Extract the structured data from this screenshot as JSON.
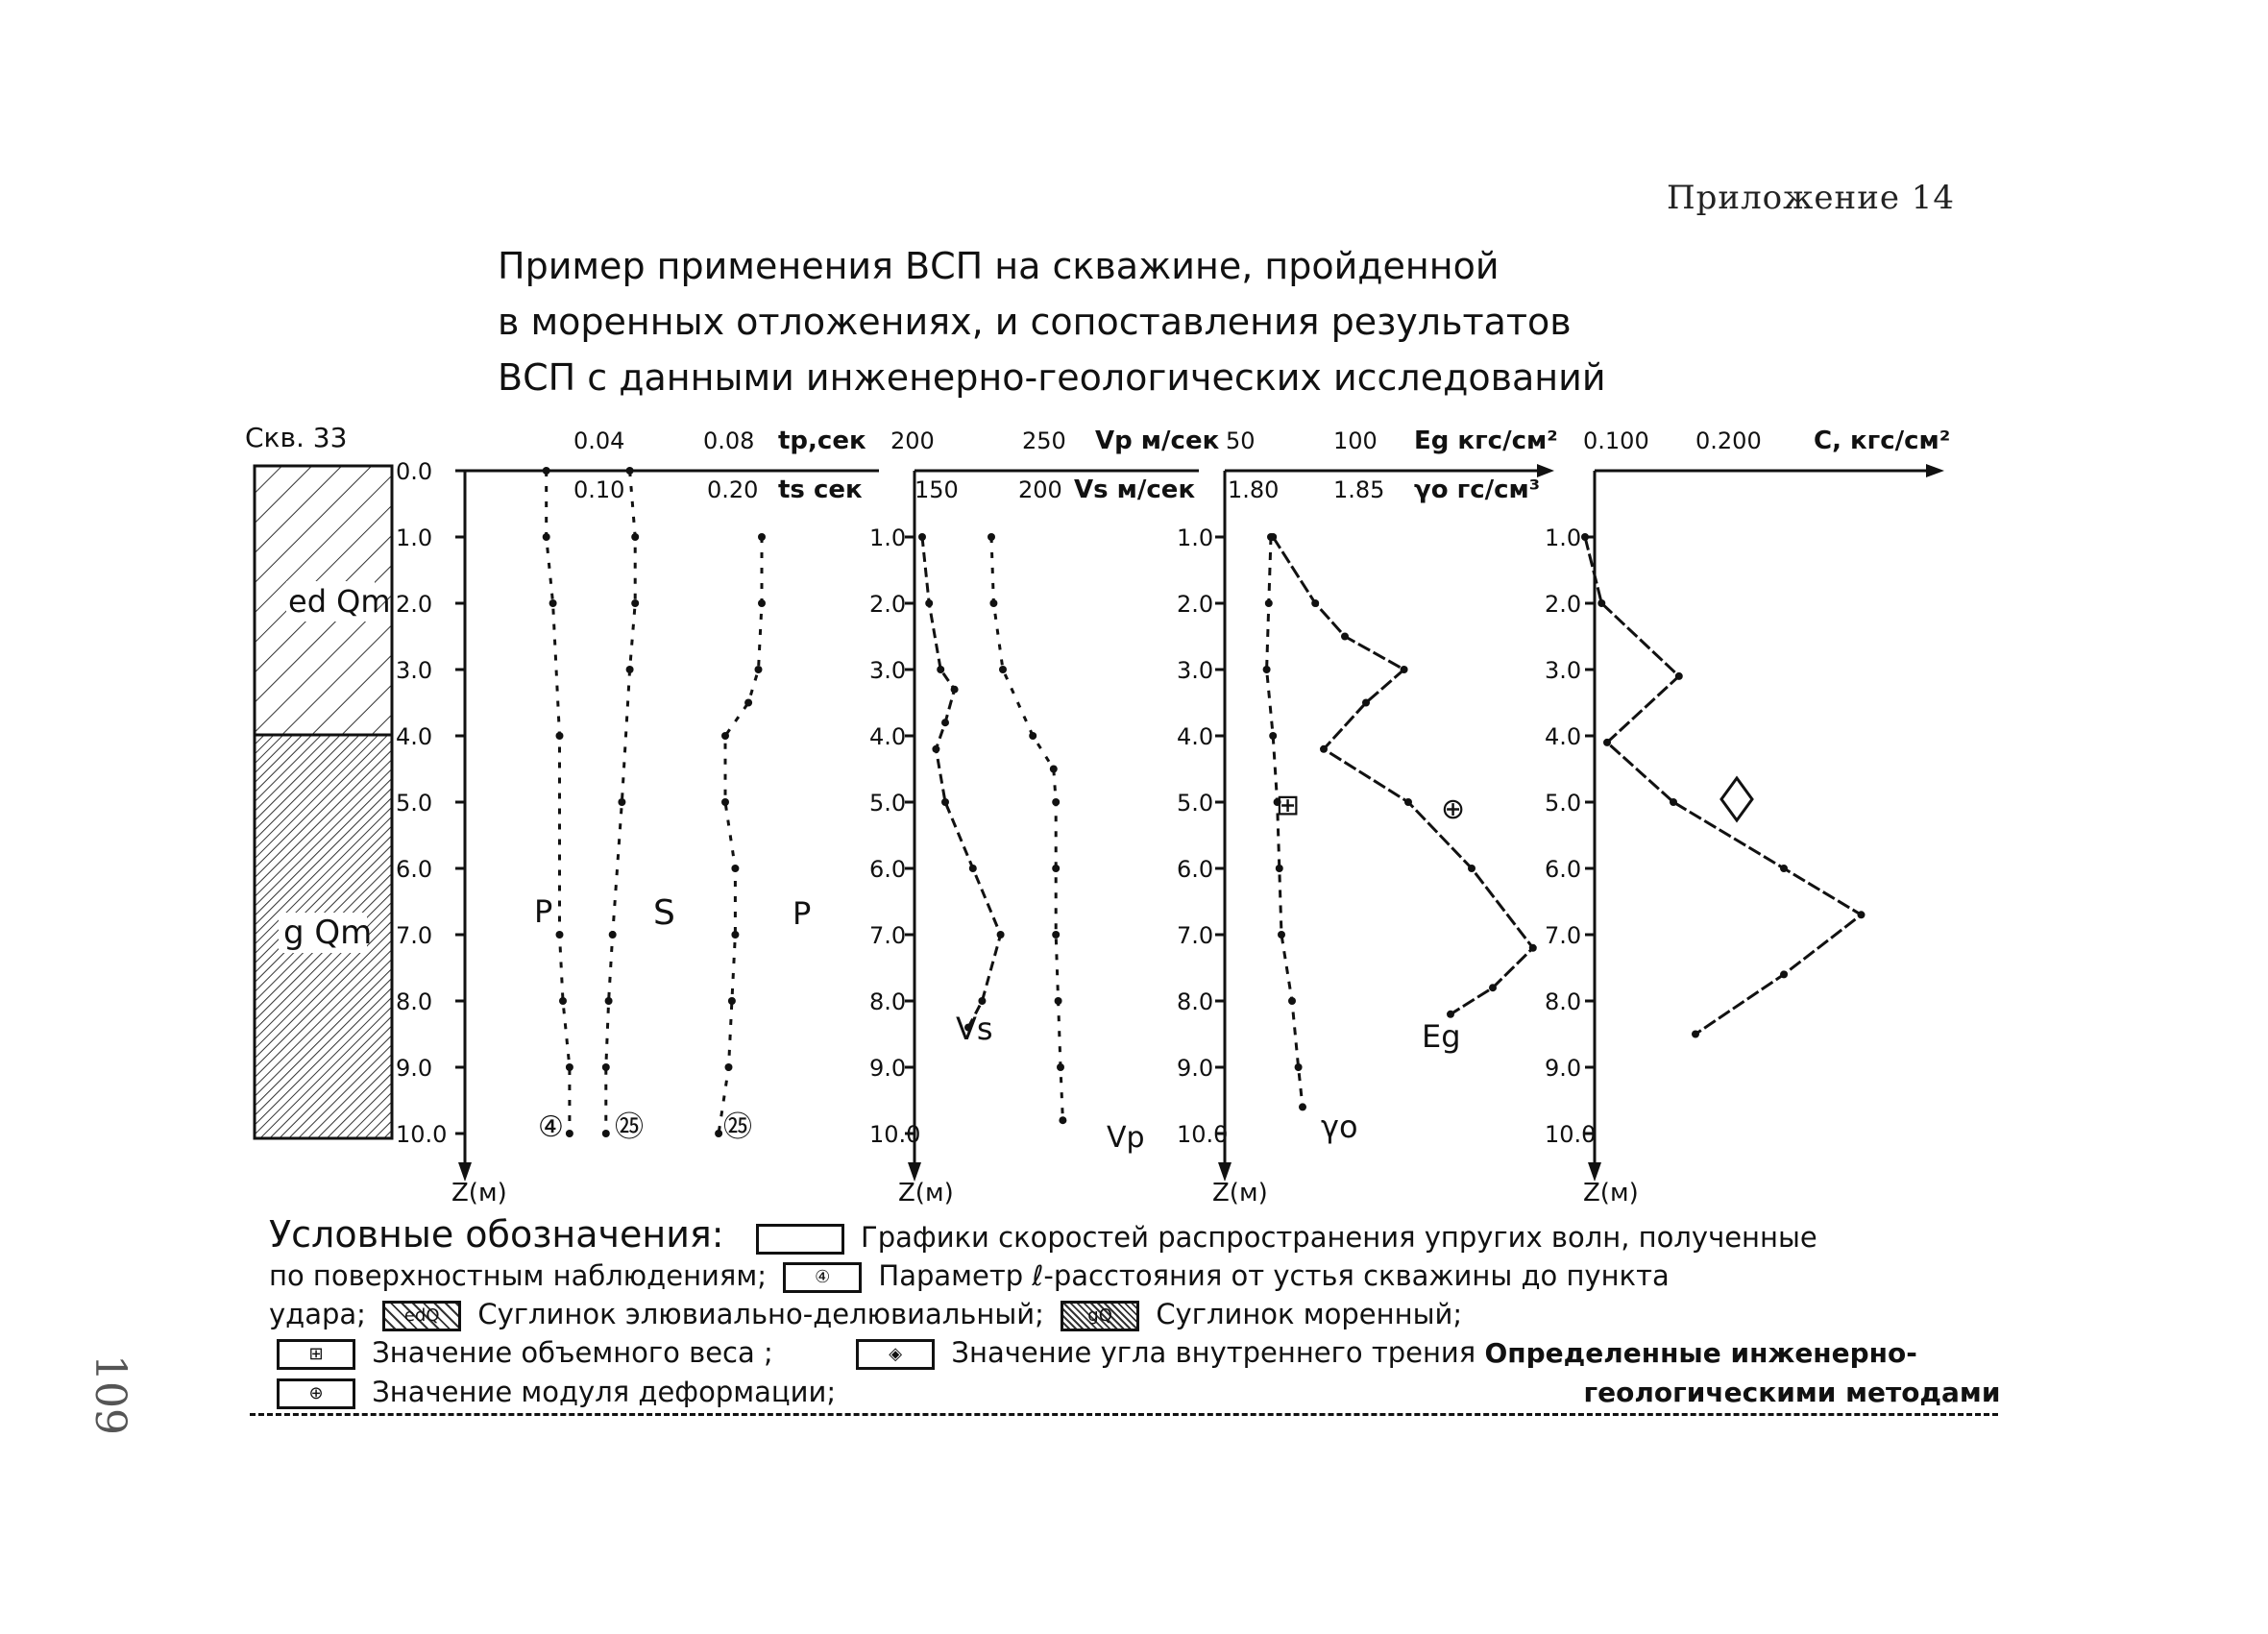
{
  "header": {
    "appendix": "Приложение  14"
  },
  "title": {
    "line1": "Пример применения ВСП на скважине, пройденной",
    "line2": "в моренных отложениях, и сопоставления результатов",
    "line3": "ВСП с данными инженерно-геологических исследований"
  },
  "page_number": "109",
  "figure": {
    "well_label": "Скв. 33",
    "layer_upper": "ed Qm",
    "layer_lower": "g Qm",
    "depth_label": "Z(м)",
    "depth_ticks": [
      "0.0",
      "1.0",
      "2.0",
      "3.0",
      "4.0",
      "5.0",
      "6.0",
      "7.0",
      "8.0",
      "9.0",
      "10.0"
    ],
    "panel1": {
      "top_ticks": [
        "0.04",
        "0.08"
      ],
      "top_label": "tp,сек",
      "bottom_ticks": [
        "0.10",
        "0.20"
      ],
      "bottom_label": "ts сек",
      "curve_labels": [
        "P",
        "S",
        "P"
      ],
      "markers": [
        "④",
        "㉕",
        "㉕"
      ]
    },
    "panel2": {
      "top_ticks": [
        "200",
        "250"
      ],
      "top_label": "Vp м/сек",
      "bottom_ticks": [
        "150",
        "200"
      ],
      "bottom_label": "Vs м/сек",
      "curve_labels": [
        "Vs",
        "Vp"
      ]
    },
    "panel3": {
      "top_ticks": [
        "50",
        "100"
      ],
      "top_label": "Eg кгс/см²",
      "bottom_ticks": [
        "1.80",
        "1.85"
      ],
      "bottom_label": "γo гс/см³",
      "curve_labels": [
        "Eg",
        "γo"
      ],
      "markers": [
        "⊞",
        "⊕"
      ]
    },
    "panel4": {
      "top_ticks": [
        "0.100",
        "0.200"
      ],
      "top_label": "C, кгс/см²"
    }
  },
  "chart_data": {
    "type": "line",
    "y_axis": "Z (м)",
    "y_range": [
      0,
      10
    ],
    "panel1": {
      "series": [
        {
          "name": "P",
          "x_units": "tp, сек",
          "points": [
            [
              0.0,
              0.026
            ],
            [
              1.0,
              0.026
            ],
            [
              2.0,
              0.028
            ],
            [
              4.0,
              0.03
            ],
            [
              7.0,
              0.03
            ],
            [
              8.0,
              0.031
            ],
            [
              9.0,
              0.033
            ],
            [
              10.0,
              0.033
            ]
          ]
        },
        {
          "name": "S",
          "x_units": "ts, сек",
          "points": [
            [
              0.0,
              0.128
            ],
            [
              1.0,
              0.132
            ],
            [
              2.0,
              0.132
            ],
            [
              3.0,
              0.128
            ],
            [
              5.0,
              0.122
            ],
            [
              7.0,
              0.115
            ],
            [
              8.0,
              0.112
            ],
            [
              9.0,
              0.11
            ],
            [
              10.0,
              0.11
            ]
          ]
        },
        {
          "name": "P",
          "x_units": "tp, сек",
          "points": [
            [
              1.0,
              0.091
            ],
            [
              2.0,
              0.091
            ],
            [
              3.0,
              0.09
            ],
            [
              3.5,
              0.087
            ],
            [
              4.0,
              0.08
            ],
            [
              5.0,
              0.08
            ],
            [
              6.0,
              0.083
            ],
            [
              7.0,
              0.083
            ],
            [
              8.0,
              0.082
            ],
            [
              9.0,
              0.081
            ],
            [
              10.0,
              0.078
            ]
          ]
        }
      ]
    },
    "panel2": {
      "series": [
        {
          "name": "Vs",
          "x_units": "Vs, м/сек",
          "points": [
            [
              1.0,
              150
            ],
            [
              2.0,
              153
            ],
            [
              3.0,
              158
            ],
            [
              3.3,
              164
            ],
            [
              3.8,
              160
            ],
            [
              4.2,
              156
            ],
            [
              5.0,
              160
            ],
            [
              6.0,
              172
            ],
            [
              7.0,
              184
            ],
            [
              8.0,
              176
            ],
            [
              8.4,
              170
            ]
          ]
        },
        {
          "name": "Vp",
          "x_units": "Vp, м/сек",
          "points": [
            [
              1.0,
              230
            ],
            [
              2.0,
              231
            ],
            [
              3.0,
              235
            ],
            [
              4.0,
              248
            ],
            [
              4.5,
              257
            ],
            [
              5.0,
              258
            ],
            [
              6.0,
              258
            ],
            [
              7.0,
              258
            ],
            [
              8.0,
              259
            ],
            [
              9.0,
              260
            ],
            [
              9.8,
              261
            ]
          ]
        }
      ]
    },
    "panel3": {
      "series": [
        {
          "name": "γo",
          "x_units": "γo, гс/см³",
          "points": [
            [
              1.0,
              1.815
            ],
            [
              2.0,
              1.814
            ],
            [
              3.0,
              1.813
            ],
            [
              4.0,
              1.816
            ],
            [
              5.0,
              1.818
            ],
            [
              6.0,
              1.819
            ],
            [
              7.0,
              1.82
            ],
            [
              8.0,
              1.825
            ],
            [
              9.0,
              1.828
            ],
            [
              9.6,
              1.83
            ]
          ]
        },
        {
          "name": "Eg",
          "x_units": "Eg, кгс/см²",
          "points": [
            [
              1.0,
              66
            ],
            [
              2.0,
              86
            ],
            [
              2.5,
              100
            ],
            [
              3.0,
              128
            ],
            [
              3.5,
              110
            ],
            [
              4.2,
              90
            ],
            [
              5.0,
              130
            ],
            [
              6.0,
              160
            ],
            [
              7.2,
              189
            ],
            [
              7.8,
              170
            ],
            [
              8.2,
              150
            ]
          ]
        }
      ]
    },
    "panel4": {
      "series": [
        {
          "name": "C",
          "x_units": "C, кгс/см²",
          "points": [
            [
              1.0,
              0.08
            ],
            [
              2.0,
              0.095
            ],
            [
              3.1,
              0.165
            ],
            [
              4.1,
              0.1
            ],
            [
              5.0,
              0.16
            ],
            [
              6.0,
              0.26
            ],
            [
              6.7,
              0.33
            ],
            [
              7.6,
              0.26
            ],
            [
              8.5,
              0.18
            ]
          ]
        }
      ]
    }
  },
  "legend": {
    "header": "Условные обозначения:",
    "item1": "Графики скоростей распространения упругих волн, полученные",
    "item1b": "по поверхностным наблюдениям;",
    "item2": "Параметр ℓ-расстояния от устья скважины до пункта",
    "item2b": "удара;",
    "item3": "Суглинок элювиально-делювиальный;",
    "item4": "Суглинок моренный;",
    "item5": "Значение объемного веса ;",
    "item6": "Значение модуля деформации;",
    "item7": "Значение угла внутреннего трения",
    "item8a": "Определенные инженерно-",
    "item8b": "геологическими методами",
    "box_markers": [
      "④",
      "edQ",
      "gQ",
      "⊞",
      "⊕",
      "◈"
    ]
  }
}
